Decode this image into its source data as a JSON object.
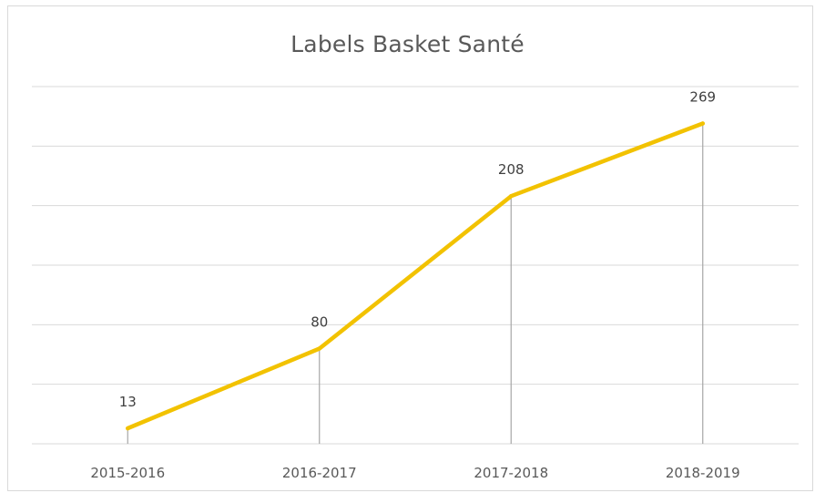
{
  "chart_data": {
    "type": "line",
    "title": "Labels Basket Santé",
    "xlabel": "",
    "ylabel": "",
    "categories": [
      "2015-2016",
      "2016-2017",
      "2017-2018",
      "2018-2019"
    ],
    "series": [
      {
        "values": [
          13,
          80,
          208,
          269
        ],
        "color": "#f2c200"
      }
    ],
    "data_labels": [
      "13",
      "80",
      "208",
      "269"
    ],
    "ylim": [
      0,
      300
    ],
    "y_gridline_step": 50,
    "grid": true,
    "drop_lines": true,
    "legend": "none",
    "colors": {
      "gridline": "#d9d9d9",
      "drop_line": "#a6a6a6",
      "axis": "#d9d9d9"
    }
  }
}
